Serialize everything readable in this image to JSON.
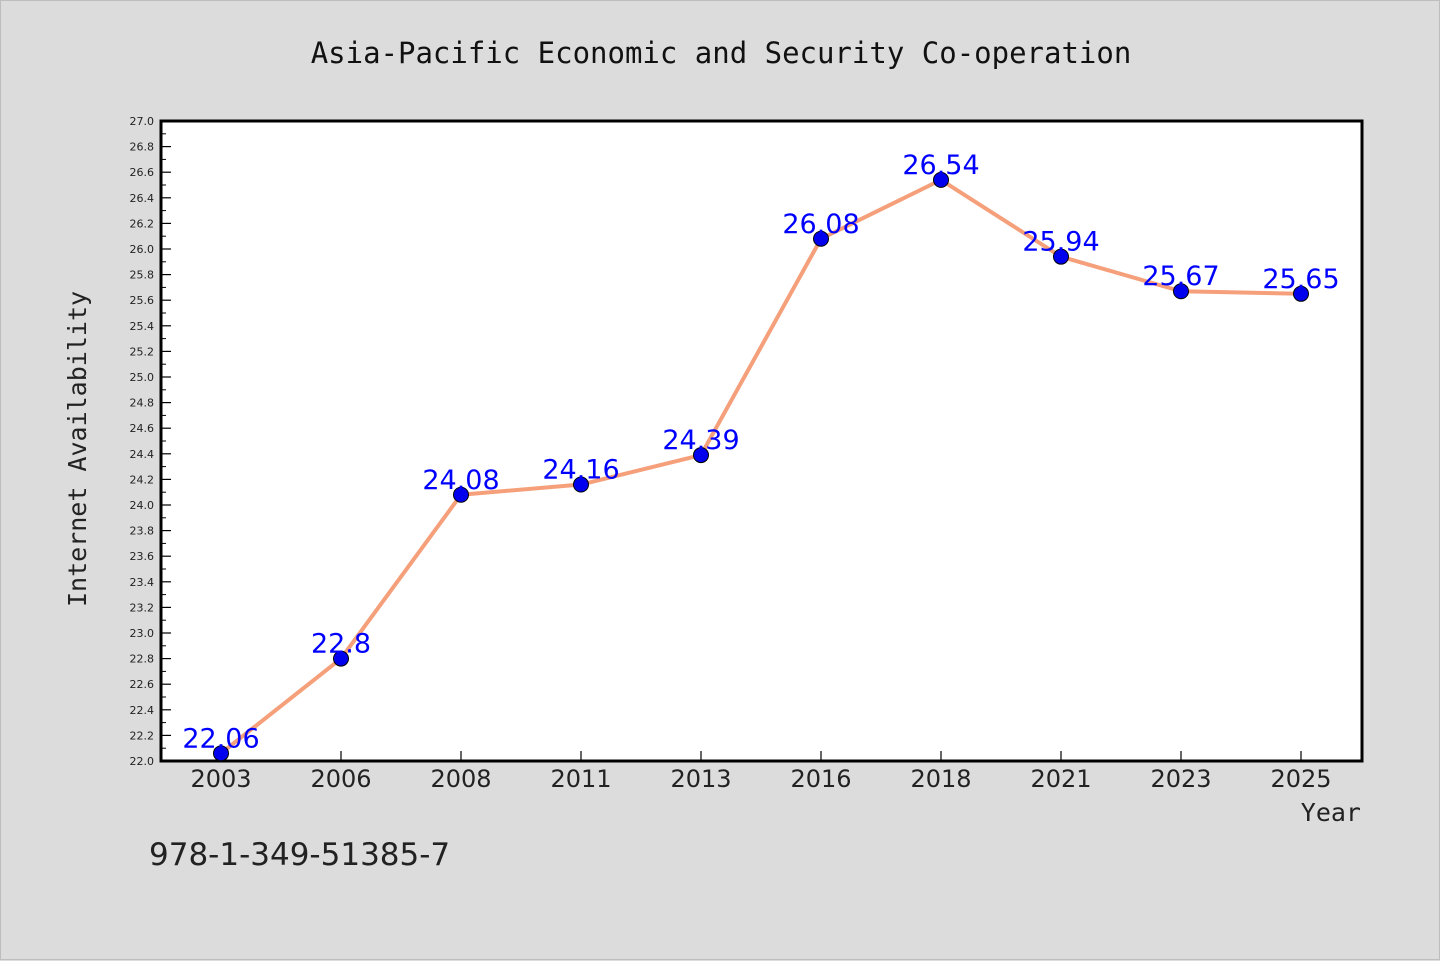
{
  "chart_data": {
    "type": "line",
    "title": "Asia-Pacific Economic and Security Co-operation",
    "xlabel": "Year",
    "ylabel": "Internet Availability",
    "categories": [
      "2003",
      "2006",
      "2008",
      "2011",
      "2013",
      "2016",
      "2018",
      "2021",
      "2023",
      "2025"
    ],
    "series": [
      {
        "values": [
          22.06,
          22.8,
          24.08,
          24.16,
          24.39,
          26.08,
          26.54,
          25.94,
          25.67,
          25.65
        ],
        "data_labels": [
          "22.06",
          "22.8",
          "24.08",
          "24.16",
          "24.39",
          "26.08",
          "26.54",
          "25.94",
          "25.67",
          "25.65"
        ],
        "line_color": "#f5a07a",
        "marker_color": "#0000ee",
        "label_color": "#0000ff"
      }
    ],
    "ylim": [
      22.0,
      27.0
    ],
    "yticks": [
      "22.0",
      "22.2",
      "22.4",
      "22.6",
      "22.8",
      "23.0",
      "23.2",
      "23.4",
      "23.6",
      "23.8",
      "24.0",
      "24.2",
      "24.4",
      "24.6",
      "24.8",
      "25.0",
      "25.2",
      "25.4",
      "25.6",
      "25.8",
      "26.0",
      "26.2",
      "26.4",
      "26.6",
      "26.8",
      "27.0"
    ],
    "grid": false,
    "legend": "none",
    "background_color": "#dcdcdc",
    "plot_background_color": "#ffffff"
  },
  "footnote": "978-1-349-51385-7"
}
